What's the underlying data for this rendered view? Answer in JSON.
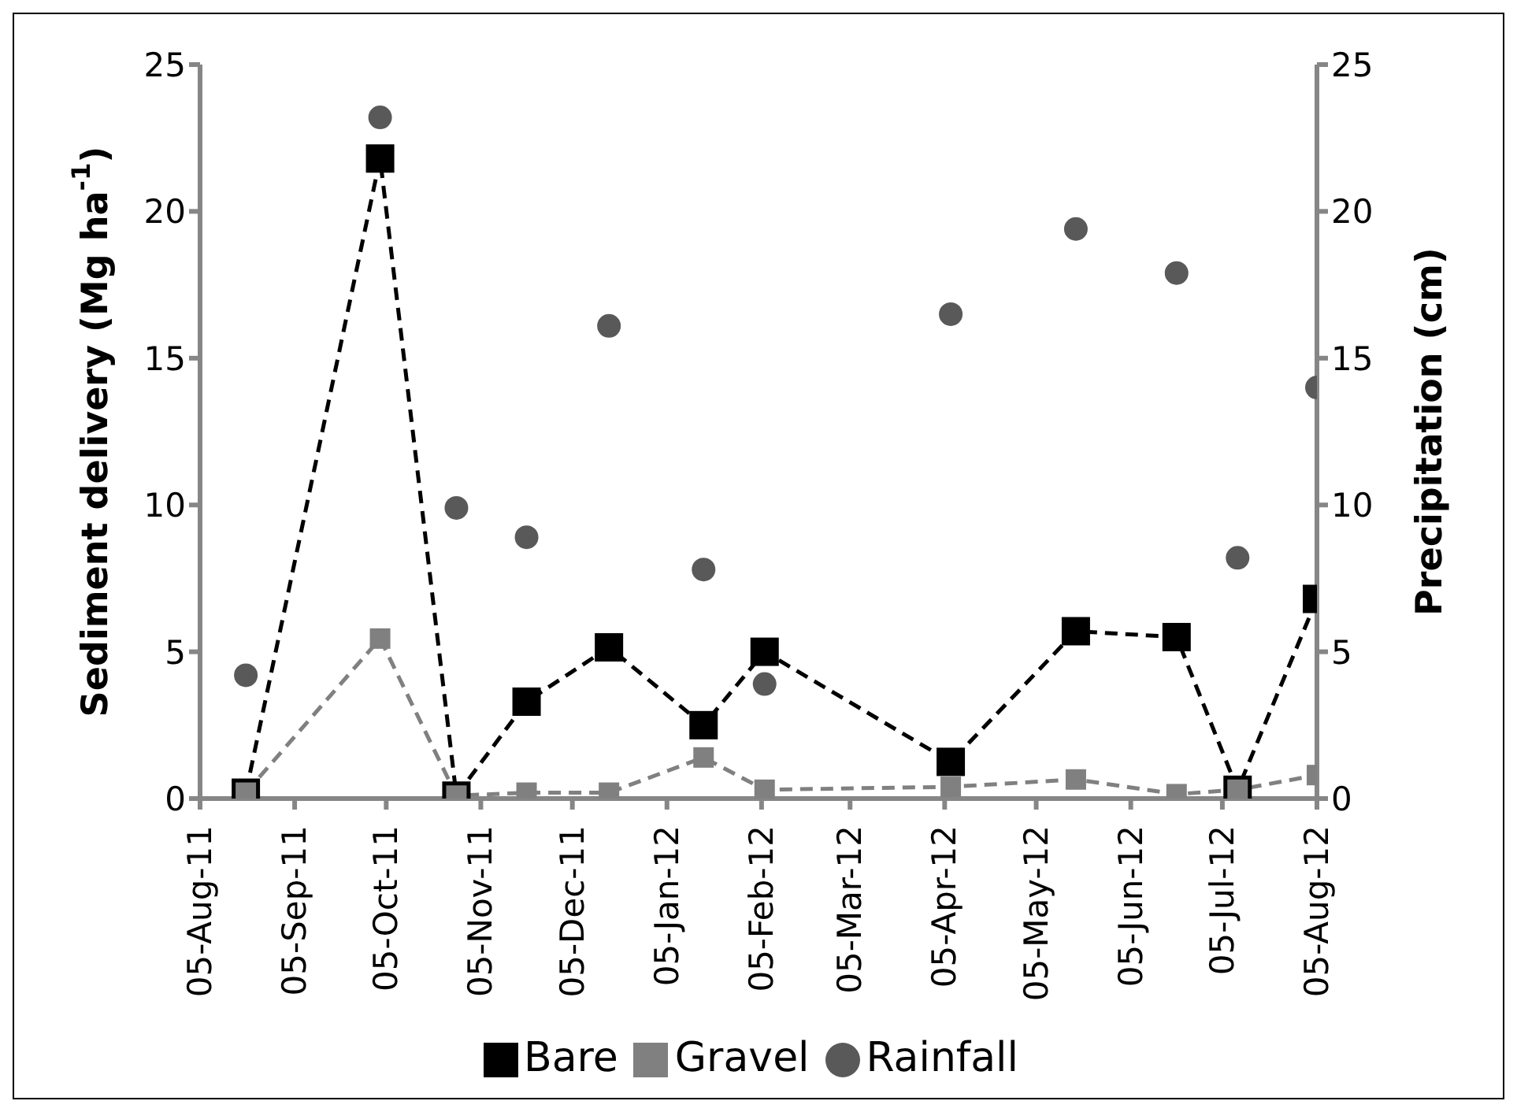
{
  "chart_data": {
    "type": "line",
    "x": [
      "2011-08-20",
      "2011-10-03",
      "2011-10-28",
      "2011-11-20",
      "2011-12-17",
      "2012-01-17",
      "2012-02-06",
      "2012-04-07",
      "2012-05-18",
      "2012-06-20",
      "2012-07-10",
      "2012-08-05"
    ],
    "series": [
      {
        "name": "Bare",
        "color": "#000000",
        "marker": "square",
        "line_style": "dashed",
        "values": [
          0.2,
          21.8,
          0.1,
          3.3,
          5.15,
          2.5,
          5.0,
          1.25,
          5.7,
          5.5,
          0.3,
          6.8
        ]
      },
      {
        "name": "Gravel",
        "color": "#808080",
        "marker": "square",
        "line_style": "dashed",
        "values": [
          0.2,
          5.45,
          0.1,
          0.2,
          0.2,
          1.4,
          0.3,
          0.4,
          0.65,
          0.15,
          0.3,
          0.8
        ]
      },
      {
        "name": "Rainfall",
        "type": "scatter",
        "axis": "y2",
        "color": "#595959",
        "marker": "circle",
        "values": [
          4.2,
          23.2,
          9.9,
          8.9,
          16.1,
          7.8,
          3.9,
          16.5,
          19.4,
          17.9,
          8.2,
          14.0
        ]
      }
    ],
    "ylabel": "Sediment delivery (Mg ha$^{-1}$)",
    "y2label": "Precipitation (cm)",
    "ylim": [
      0,
      25
    ],
    "yticks": [
      0,
      5,
      10,
      15,
      20,
      25
    ],
    "y2lim": [
      0,
      25
    ],
    "y2ticks": [
      0,
      5,
      10,
      15,
      20,
      25
    ],
    "xlim": [
      "2011-08-05",
      "2012-08-05"
    ],
    "xticks": [
      {
        "value": "2011-08-05",
        "label": "05-Aug-11"
      },
      {
        "value": "2011-09-05",
        "label": "05-Sep-11"
      },
      {
        "value": "2011-10-05",
        "label": "05-Oct-11"
      },
      {
        "value": "2011-11-05",
        "label": "05-Nov-11"
      },
      {
        "value": "2011-12-05",
        "label": "05-Dec-11"
      },
      {
        "value": "2012-01-05",
        "label": "05-Jan-12"
      },
      {
        "value": "2012-02-05",
        "label": "05-Feb-12"
      },
      {
        "value": "2012-03-05",
        "label": "05-Mar-12"
      },
      {
        "value": "2012-04-05",
        "label": "05-Apr-12"
      },
      {
        "value": "2012-05-05",
        "label": "05-May-12"
      },
      {
        "value": "2012-06-05",
        "label": "05-Jun-12"
      },
      {
        "value": "2012-07-05",
        "label": "05-Jul-12"
      },
      {
        "value": "2012-08-05",
        "label": "05-Aug-12"
      }
    ],
    "grid": false,
    "legend": "bottom"
  }
}
